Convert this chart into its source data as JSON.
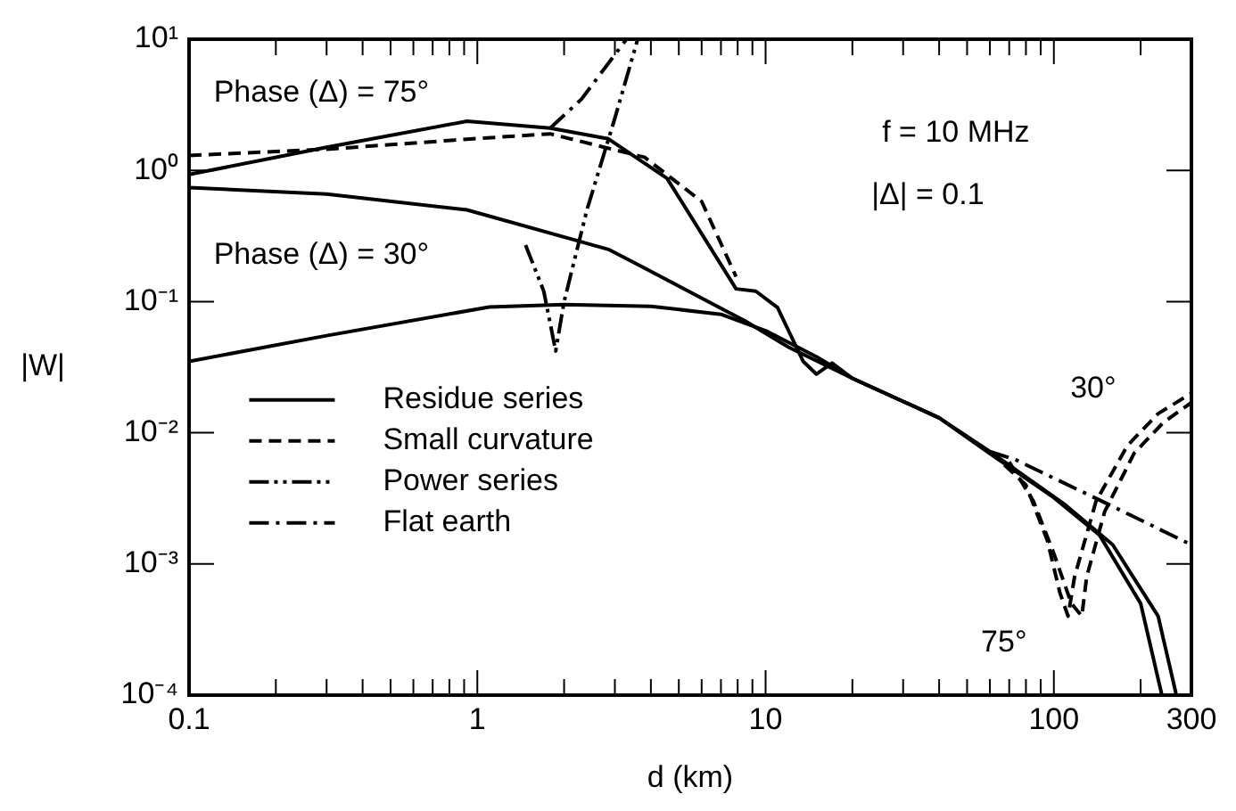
{
  "chart_data": {
    "type": "line",
    "xlabel": "d (km)",
    "ylabel": "|W|",
    "log": "xy",
    "legend": "left",
    "grid": false,
    "marker": "none",
    "xlim": [
      0.1,
      300
    ],
    "ylim": [
      0.0001,
      10
    ],
    "xticks": [
      0.1,
      {
        "value": 0.2,
        "label": null
      },
      {
        "value": 0.3,
        "label": null
      },
      {
        "value": 0.4,
        "label": null
      },
      {
        "value": 0.5,
        "label": null
      },
      {
        "value": 0.6,
        "label": null
      },
      {
        "value": 0.7,
        "label": null
      },
      {
        "value": 0.8,
        "label": null
      },
      {
        "value": 0.9,
        "label": null
      },
      1,
      {
        "value": 2,
        "label": null
      },
      {
        "value": 3,
        "label": null
      },
      {
        "value": 4,
        "label": null
      },
      {
        "value": 5,
        "label": null
      },
      {
        "value": 6,
        "label": null
      },
      {
        "value": 7,
        "label": null
      },
      {
        "value": 8,
        "label": null
      },
      {
        "value": 9,
        "label": null
      },
      10,
      {
        "value": 20,
        "label": null
      },
      {
        "value": 30,
        "label": null
      },
      {
        "value": 40,
        "label": null
      },
      {
        "value": 50,
        "label": null
      },
      {
        "value": 60,
        "label": null
      },
      {
        "value": 70,
        "label": null
      },
      {
        "value": 80,
        "label": null
      },
      {
        "value": 90,
        "label": null
      },
      100,
      {
        "value": 200,
        "label": null
      },
      300
    ],
    "yticks": [
      {
        "value": 0.0001,
        "label": "10⁻⁴"
      },
      {
        "value": 0.001,
        "label": "10⁻³"
      },
      {
        "value": 0.01,
        "label": "10⁻²"
      },
      {
        "value": 0.1,
        "label": "10⁻¹"
      },
      {
        "value": 1,
        "label": "10⁰"
      },
      {
        "value": 10,
        "label": "10¹"
      }
    ],
    "series": [
      {
        "name": "Residue series",
        "line_style": "solid",
        "color": "#000000",
        "x": [
          0.1,
          0.3,
          0.92,
          1.79,
          2.85,
          4.55,
          7.9,
          9.25,
          11,
          13.5,
          15,
          17,
          20,
          40,
          58,
          100,
          144,
          200,
          237
        ],
        "values": [
          0.93,
          1.5,
          2.37,
          2.1,
          1.74,
          0.87,
          0.125,
          0.12,
          0.09,
          0.035,
          0.028,
          0.034,
          0.026,
          0.013,
          0.0073,
          0.0032,
          0.00166,
          0.0005,
          0.0001
        ]
      },
      {
        "line_style": "solid",
        "color": "#000000",
        "x": [
          0.1,
          0.3,
          0.92,
          2.85,
          3.8,
          8.5,
          12,
          20,
          40,
          60,
          110,
          160,
          230,
          266
        ],
        "values": [
          0.74,
          0.66,
          0.5,
          0.25,
          0.18,
          0.071,
          0.045,
          0.026,
          0.013,
          0.0072,
          0.0028,
          0.0014,
          0.0004,
          0.0001
        ]
      },
      {
        "line_style": "solid",
        "color": "#000000",
        "x": [
          0.1,
          0.3,
          1.1,
          2,
          4,
          7,
          10,
          15,
          20,
          40
        ],
        "values": [
          0.035,
          0.055,
          0.091,
          0.095,
          0.092,
          0.08,
          0.06,
          0.038,
          0.026,
          0.013
        ]
      },
      {
        "name": "Small curvature",
        "line_style": "dashed",
        "color": "#000000",
        "x": [
          0.1,
          0.3,
          1,
          1.79,
          3.8,
          6,
          7.9,
          20,
          60,
          80,
          95,
          105,
          112,
          118,
          140,
          180,
          230,
          300
        ],
        "values": [
          1.3,
          1.45,
          1.75,
          1.9,
          1.26,
          0.58,
          0.155,
          null,
          0.0072,
          0.004,
          0.0015,
          0.0006,
          0.0004,
          0.0008,
          0.003,
          0.008,
          0.014,
          0.02
        ]
      },
      {
        "line_style": "dashed",
        "color": "#000000",
        "x": [
          70,
          85,
          100,
          115,
          125,
          130,
          150,
          190,
          240,
          300
        ],
        "values": [
          0.006,
          0.003,
          0.0012,
          0.0005,
          0.0004,
          0.0008,
          0.0025,
          0.007,
          0.012,
          0.017
        ]
      },
      {
        "name": "Power series",
        "line_style": "dashdotdot",
        "color": "#000000",
        "x": [
          1.47,
          1.7,
          1.87,
          2,
          2.4,
          3,
          3.6
        ],
        "values": [
          0.27,
          0.12,
          0.042,
          0.1,
          0.5,
          2.5,
          10
        ]
      },
      {
        "name": "Flat earth",
        "line_style": "dashdot",
        "color": "#000000",
        "x": [
          1.79,
          2.3,
          3.29
        ],
        "values": [
          2.1,
          3.5,
          10
        ]
      },
      {
        "line_style": "dashdot",
        "color": "#000000",
        "x": [
          60,
          74,
          157,
          300
        ],
        "values": [
          0.0072,
          0.0062,
          0.0028,
          0.0014
        ]
      }
    ],
    "annotations": [
      "Phase (Δ) = 75°",
      "Phase (Δ) = 30°",
      "f = 10 MHz",
      "|Δ| = 0.1",
      "30°",
      "75°"
    ]
  }
}
